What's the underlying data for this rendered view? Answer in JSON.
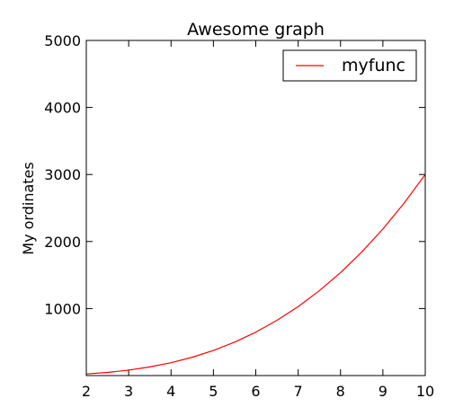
{
  "chart_data": {
    "type": "line",
    "title": "Awesome graph",
    "xlabel": "",
    "ylabel": "My ordinates",
    "xlim": [
      2,
      10
    ],
    "ylim": [
      0,
      5000
    ],
    "xticks": [
      2,
      3,
      4,
      5,
      6,
      7,
      8,
      9,
      10
    ],
    "yticks": [
      1000,
      2000,
      3000,
      4000,
      5000
    ],
    "xtick_labels": [
      "2",
      "3",
      "4",
      "5",
      "6",
      "7",
      "8",
      "9",
      "10"
    ],
    "ytick_labels": [
      "1000",
      "2000",
      "3000",
      "4000",
      "5000"
    ],
    "grid": false,
    "legend_position": "top-right",
    "series": [
      {
        "name": "myfunc",
        "color": "#ff0000",
        "x": [
          2,
          2.5,
          3,
          3.5,
          4,
          4.5,
          5,
          5.5,
          6,
          6.5,
          7,
          7.5,
          8,
          8.5,
          9,
          9.5,
          10
        ],
        "y": [
          24,
          47,
          81,
          129,
          192,
          273,
          375,
          499,
          648,
          824,
          1029,
          1266,
          1536,
          1842,
          2187,
          2572,
          3000
        ]
      }
    ]
  }
}
